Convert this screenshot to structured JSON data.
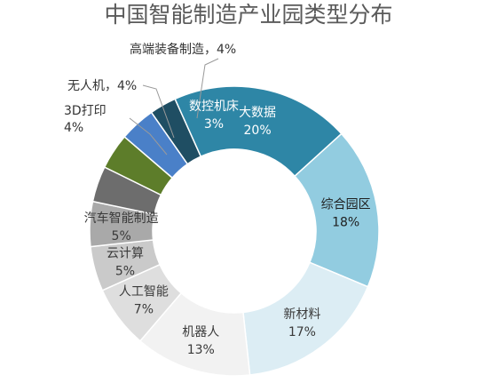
{
  "chart_data": {
    "type": "pie",
    "style": "donut",
    "title": "中国智能制造产业园类型分布",
    "slices": [
      {
        "name": "数控机床",
        "value_label": "3%",
        "value": 3,
        "color": "#1f4e63",
        "label_position": "inside",
        "text_color": "#ffffff"
      },
      {
        "name": "大数据",
        "value_label": "20%",
        "value": 20,
        "color": "#2e86a6",
        "label_position": "inside",
        "text_color": "#ffffff"
      },
      {
        "name": "综合园区",
        "value_label": "18%",
        "value": 18,
        "color": "#92cce0",
        "label_position": "inside",
        "text_color": "#1f1f1f"
      },
      {
        "name": "新材料",
        "value_label": "17%",
        "value": 17,
        "color": "#dcedf4",
        "label_position": "inside",
        "text_color": "#3a3a3a"
      },
      {
        "name": "机器人",
        "value_label": "13%",
        "value": 13,
        "color": "#f2f2f2",
        "label_position": "inside",
        "text_color": "#3a3a3a"
      },
      {
        "name": "人工智能",
        "value_label": "7%",
        "value": 7,
        "color": "#dedede",
        "label_position": "inside",
        "text_color": "#3a3a3a"
      },
      {
        "name": "云计算",
        "value_label": "5%",
        "value": 5,
        "color": "#cacaca",
        "label_position": "inside",
        "text_color": "#3a3a3a"
      },
      {
        "name": "汽车智能制造",
        "value_label": "5%",
        "value": 5,
        "color": "#a9a9a9",
        "label_position": "inside",
        "text_color": "#3a3a3a"
      },
      {
        "name": "3D打印",
        "value_label": "4%",
        "value": 4,
        "color": "#6d6d6d",
        "label_position": "outside",
        "text_color": "#333333"
      },
      {
        "name": "无人机",
        "value_label": "4%",
        "value": 4,
        "color": "#5d7d2a",
        "label_position": "outside",
        "text_color": "#333333"
      },
      {
        "name": "高端装备制造",
        "value_label": "4%",
        "value": 4,
        "color": "#4a80c8",
        "label_position": "outside",
        "text_color": "#333333"
      }
    ],
    "legend": "none"
  }
}
